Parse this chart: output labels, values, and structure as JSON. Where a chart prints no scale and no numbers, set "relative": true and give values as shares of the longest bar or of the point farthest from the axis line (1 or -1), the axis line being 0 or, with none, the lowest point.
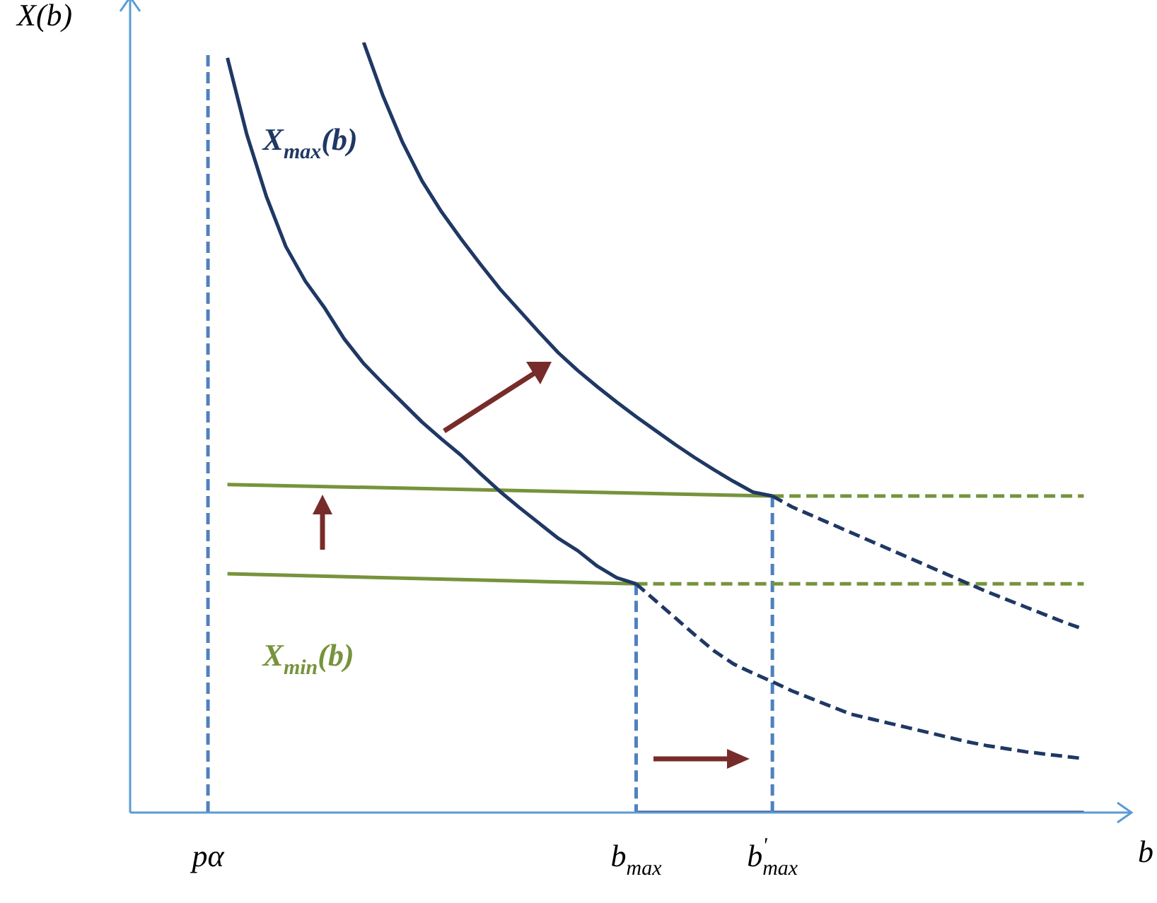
{
  "chart_data": {
    "type": "line",
    "relative": true,
    "xlabel": "b",
    "ylabel": "X(b)",
    "marker": "none",
    "legend": false,
    "categories": [
      null,
      null,
      null,
      null,
      "pα",
      null,
      null,
      null,
      null,
      null,
      null,
      null,
      null,
      null,
      null,
      null,
      null,
      null,
      null,
      null,
      null,
      null,
      null,
      null,
      null,
      null,
      "b$_{max}$",
      null,
      null,
      null,
      null,
      null,
      null,
      "b$^{'}$$_{max}$",
      null,
      null,
      null,
      null,
      null,
      null,
      null,
      null,
      null,
      null,
      null,
      null,
      null,
      null,
      null,
      null,
      null
    ],
    "series": [
      {
        "name": "X$_{max}$(b)",
        "color": "#1f3864",
        "values": [
          null,
          null,
          null,
          null,
          null,
          0.98,
          0.88,
          0.8,
          0.735,
          0.69,
          0.655,
          0.615,
          0.583,
          0.557,
          0.532,
          0.507,
          0.485,
          0.464,
          0.44,
          0.417,
          0.396,
          0.376,
          0.356,
          0.34,
          0.32,
          0.305,
          0.297,
          null,
          null,
          null,
          null,
          null,
          null,
          null,
          null,
          null,
          null,
          null,
          null,
          null,
          null,
          null,
          null,
          null,
          null,
          null,
          null,
          null,
          null,
          null,
          null
        ]
      },
      {
        "color": "#1f3864",
        "values": [
          null,
          null,
          null,
          null,
          null,
          null,
          null,
          null,
          null,
          null,
          null,
          null,
          1,
          0.93,
          0.87,
          0.82,
          0.78,
          0.745,
          0.712,
          0.68,
          0.652,
          0.624,
          0.597,
          0.574,
          0.553,
          0.533,
          0.514,
          0.496,
          0.478,
          0.461,
          0.445,
          0.43,
          0.416,
          0.411,
          null,
          null,
          null,
          null,
          null,
          null,
          null,
          null,
          null,
          null,
          null,
          null,
          null,
          null,
          null,
          null,
          null
        ]
      },
      {
        "color": "#1f3864",
        "line_style": "dashed",
        "values": [
          null,
          null,
          null,
          null,
          null,
          null,
          null,
          null,
          null,
          null,
          null,
          null,
          null,
          null,
          null,
          null,
          null,
          null,
          null,
          null,
          null,
          null,
          null,
          null,
          null,
          null,
          0.297,
          0.275,
          0.253,
          0.231,
          0.21,
          0.193,
          0.181,
          0.17,
          0.158,
          0.148,
          0.138,
          0.128,
          0.122,
          0.116,
          0.11,
          0.104,
          0.098,
          0.092,
          0.087,
          0.083,
          0.079,
          0.076,
          0.073,
          0.07,
          null
        ]
      },
      {
        "color": "#1f3864",
        "line_style": "dashed",
        "values": [
          null,
          null,
          null,
          null,
          null,
          null,
          null,
          null,
          null,
          null,
          null,
          null,
          null,
          null,
          null,
          null,
          null,
          null,
          null,
          null,
          null,
          null,
          null,
          null,
          null,
          null,
          null,
          null,
          null,
          null,
          null,
          null,
          null,
          0.411,
          0.397,
          0.386,
          0.375,
          0.364,
          0.353,
          0.342,
          0.331,
          0.32,
          0.309,
          0.298,
          0.287,
          0.277,
          0.267,
          0.257,
          0.247,
          0.238,
          null
        ]
      },
      {
        "color": "#77933c",
        "values": [
          null,
          null,
          null,
          null,
          null,
          0.426,
          null,
          null,
          null,
          null,
          null,
          null,
          null,
          null,
          null,
          null,
          null,
          null,
          null,
          null,
          null,
          null,
          null,
          null,
          null,
          null,
          null,
          null,
          null,
          null,
          null,
          null,
          null,
          0.411,
          null,
          null,
          null,
          null,
          null,
          null,
          null,
          null,
          null,
          null,
          null,
          null,
          null,
          null,
          null,
          null,
          null
        ]
      },
      {
        "name": "X$_{min}$(b)",
        "color": "#77933c",
        "values": [
          null,
          null,
          null,
          null,
          null,
          0.31,
          null,
          null,
          null,
          null,
          null,
          null,
          null,
          null,
          null,
          null,
          null,
          null,
          null,
          null,
          null,
          null,
          null,
          null,
          null,
          null,
          0.297,
          null,
          null,
          null,
          null,
          null,
          null,
          null,
          null,
          null,
          null,
          null,
          null,
          null,
          null,
          null,
          null,
          null,
          null,
          null,
          null,
          null,
          null,
          null,
          null
        ]
      },
      {
        "color": "#77933c",
        "line_style": "dashed",
        "values": [
          null,
          null,
          null,
          null,
          null,
          null,
          null,
          null,
          null,
          null,
          null,
          null,
          null,
          null,
          null,
          null,
          null,
          null,
          null,
          null,
          null,
          null,
          null,
          null,
          null,
          null,
          null,
          null,
          null,
          null,
          null,
          null,
          null,
          0.411,
          null,
          null,
          null,
          null,
          null,
          null,
          null,
          null,
          null,
          null,
          null,
          null,
          null,
          null,
          null,
          0.411,
          null
        ]
      },
      {
        "color": "#77933c",
        "line_style": "dashed",
        "values": [
          null,
          null,
          null,
          null,
          null,
          null,
          null,
          null,
          null,
          null,
          null,
          null,
          null,
          null,
          null,
          null,
          null,
          null,
          null,
          null,
          null,
          null,
          null,
          null,
          null,
          null,
          0.297,
          null,
          null,
          null,
          null,
          null,
          null,
          null,
          null,
          null,
          null,
          null,
          null,
          null,
          null,
          null,
          null,
          null,
          null,
          null,
          null,
          null,
          null,
          0.297,
          null
        ]
      },
      {
        "color": "#4f81bd",
        "line_style": "dashed",
        "x": [
          "pα",
          "pα"
        ],
        "values": [
          0,
          0.985
        ]
      },
      {
        "color": "#4f81bd",
        "line_style": "dashed",
        "x": [
          "b$_{max}$",
          "b$_{max}$"
        ],
        "values": [
          0.297,
          0
        ]
      },
      {
        "color": "#4f81bd",
        "line_style": "dashed",
        "x": [
          "b$^{'}$$_{max}$",
          "b$^{'}$$_{max}$"
        ],
        "values": [
          0.411,
          0
        ]
      },
      {
        "color": "#1f3864",
        "values": [
          null,
          null,
          null,
          null,
          null,
          null,
          null,
          null,
          null,
          null,
          null,
          null,
          null,
          null,
          null,
          null,
          null,
          null,
          null,
          null,
          null,
          null,
          null,
          null,
          null,
          null,
          0,
          null,
          null,
          null,
          null,
          null,
          null,
          null,
          null,
          null,
          null,
          null,
          null,
          null,
          null,
          null,
          null,
          null,
          null,
          null,
          null,
          null,
          null,
          0,
          null
        ]
      }
    ]
  }
}
